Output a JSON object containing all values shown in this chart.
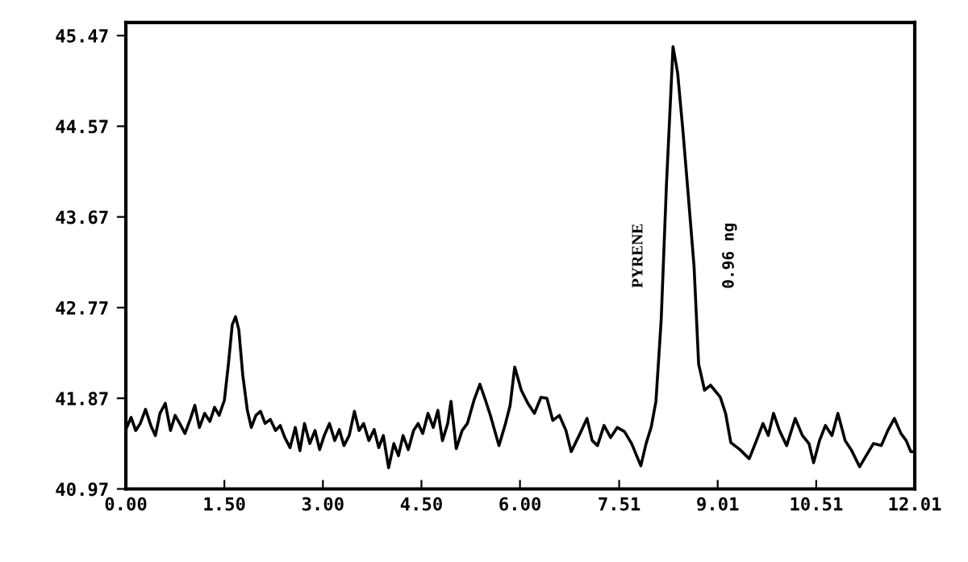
{
  "chart_data": {
    "type": "line",
    "color": "#000000",
    "marker": "none",
    "line_style": "solid",
    "grid": false,
    "legend": false,
    "x": [
      0.0,
      0.08,
      0.15,
      0.22,
      0.3,
      0.38,
      0.45,
      0.52,
      0.6,
      0.68,
      0.75,
      0.82,
      0.9,
      0.98,
      1.05,
      1.12,
      1.2,
      1.28,
      1.35,
      1.42,
      1.5,
      1.56,
      1.62,
      1.67,
      1.72,
      1.78,
      1.85,
      1.91,
      1.98,
      2.05,
      2.12,
      2.2,
      2.28,
      2.35,
      2.42,
      2.5,
      2.58,
      2.65,
      2.72,
      2.8,
      2.88,
      2.95,
      3.02,
      3.1,
      3.18,
      3.25,
      3.32,
      3.4,
      3.48,
      3.55,
      3.62,
      3.7,
      3.78,
      3.85,
      3.92,
      4.0,
      4.08,
      4.15,
      4.22,
      4.3,
      4.38,
      4.45,
      4.52,
      4.6,
      4.68,
      4.75,
      4.82,
      4.9,
      4.95,
      5.03,
      5.12,
      5.2,
      5.3,
      5.39,
      5.47,
      5.55,
      5.68,
      5.78,
      5.85,
      5.92,
      6.02,
      6.12,
      6.22,
      6.32,
      6.41,
      6.5,
      6.6,
      6.7,
      6.78,
      6.9,
      7.02,
      7.1,
      7.18,
      7.28,
      7.38,
      7.48,
      7.59,
      7.7,
      7.84,
      7.92,
      8.0,
      8.07,
      8.15,
      8.23,
      8.33,
      8.4,
      8.48,
      8.56,
      8.65,
      8.72,
      8.81,
      8.9,
      9.05,
      9.13,
      9.21,
      9.35,
      9.49,
      9.6,
      9.7,
      9.78,
      9.86,
      9.95,
      10.06,
      10.19,
      10.3,
      10.4,
      10.47,
      10.56,
      10.65,
      10.75,
      10.84,
      10.95,
      11.05,
      11.17,
      11.27,
      11.38,
      11.5,
      11.6,
      11.7,
      11.8,
      11.88,
      11.95,
      12.01
    ],
    "values": [
      41.56,
      41.68,
      41.55,
      41.62,
      41.76,
      41.6,
      41.5,
      41.72,
      41.82,
      41.55,
      41.7,
      41.62,
      41.52,
      41.66,
      41.8,
      41.58,
      41.72,
      41.64,
      41.78,
      41.7,
      41.85,
      42.2,
      42.6,
      42.68,
      42.55,
      42.1,
      41.75,
      41.58,
      41.7,
      41.74,
      41.62,
      41.66,
      41.55,
      41.6,
      41.48,
      41.38,
      41.58,
      41.35,
      41.62,
      41.42,
      41.55,
      41.36,
      41.5,
      41.62,
      41.45,
      41.56,
      41.4,
      41.5,
      41.74,
      41.55,
      41.62,
      41.45,
      41.56,
      41.38,
      41.5,
      41.18,
      41.42,
      41.3,
      41.5,
      41.36,
      41.55,
      41.62,
      41.52,
      41.72,
      41.58,
      41.75,
      41.45,
      41.62,
      41.84,
      41.37,
      41.55,
      41.62,
      41.85,
      42.01,
      41.86,
      41.7,
      41.4,
      41.62,
      41.8,
      42.18,
      41.95,
      41.82,
      41.72,
      41.88,
      41.87,
      41.65,
      41.7,
      41.55,
      41.34,
      41.5,
      41.67,
      41.45,
      41.4,
      41.6,
      41.48,
      41.58,
      41.54,
      41.42,
      41.2,
      41.42,
      41.59,
      41.84,
      42.65,
      43.99,
      45.36,
      45.1,
      44.53,
      43.9,
      43.18,
      42.21,
      41.95,
      42.0,
      41.88,
      41.72,
      41.43,
      41.36,
      41.27,
      41.45,
      41.62,
      41.5,
      41.72,
      41.55,
      41.4,
      41.67,
      41.5,
      41.42,
      41.23,
      41.45,
      41.6,
      41.5,
      41.72,
      41.45,
      41.35,
      41.19,
      41.3,
      41.42,
      41.4,
      41.55,
      41.67,
      41.52,
      41.45,
      41.34,
      41.34
    ],
    "xlim": [
      0,
      12.01
    ],
    "ylim": [
      40.97,
      45.6
    ],
    "xticks": [
      {
        "value": 0,
        "label": "0.00"
      },
      {
        "value": 1.5,
        "label": "1.50"
      },
      {
        "value": 3.0,
        "label": "3.00"
      },
      {
        "value": 4.5,
        "label": "4.50"
      },
      {
        "value": 6.0,
        "label": "6.00"
      },
      7.51,
      9.01,
      10.51,
      12.01
    ],
    "yticks": [
      40.97,
      41.87,
      42.77,
      43.67,
      44.57,
      45.47
    ],
    "annotations": [
      "PYRENE",
      "0.96 ng"
    ]
  }
}
